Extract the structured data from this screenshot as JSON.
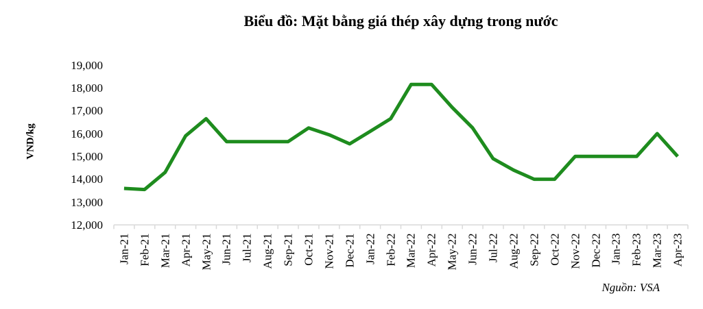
{
  "chart_data": {
    "type": "line",
    "title": "Biểu đồ: Mặt bằng giá thép xây dựng trong nước",
    "ylabel": "VND/kg",
    "xlabel": "",
    "source": "Nguồn: VSA",
    "line_color": "#1e8c1e",
    "axis_color": "#d9d9d9",
    "text_color": "#000000",
    "background": "#ffffff",
    "legend": "none",
    "grid": "off",
    "ylim": [
      12000,
      19000
    ],
    "ytick_step": 1000,
    "yticks": [
      "12,000",
      "13,000",
      "14,000",
      "15,000",
      "16,000",
      "17,000",
      "18,000",
      "19,000"
    ],
    "categories": [
      "Jan-21",
      "Feb-21",
      "Mar-21",
      "Apr-21",
      "May-21",
      "Jun-21",
      "Jul-21",
      "Aug-21",
      "Sep-21",
      "Oct-21",
      "Nov-21",
      "Dec-21",
      "Jan-22",
      "Feb-22",
      "Mar-22",
      "Apr-22",
      "May-22",
      "Jun-22",
      "Jul-22",
      "Aug-22",
      "Sep-22",
      "Oct-22",
      "Nov-22",
      "Dec-22",
      "Jan-23",
      "Feb-23",
      "Mar-23",
      "Apr-23"
    ],
    "values": [
      13600,
      13550,
      14300,
      15900,
      16650,
      15650,
      15650,
      15650,
      15650,
      16250,
      15950,
      15550,
      16100,
      16650,
      18150,
      18150,
      17150,
      16250,
      14900,
      14400,
      14000,
      14000,
      15000,
      15000,
      15000,
      15000,
      16000,
      15000
    ]
  }
}
